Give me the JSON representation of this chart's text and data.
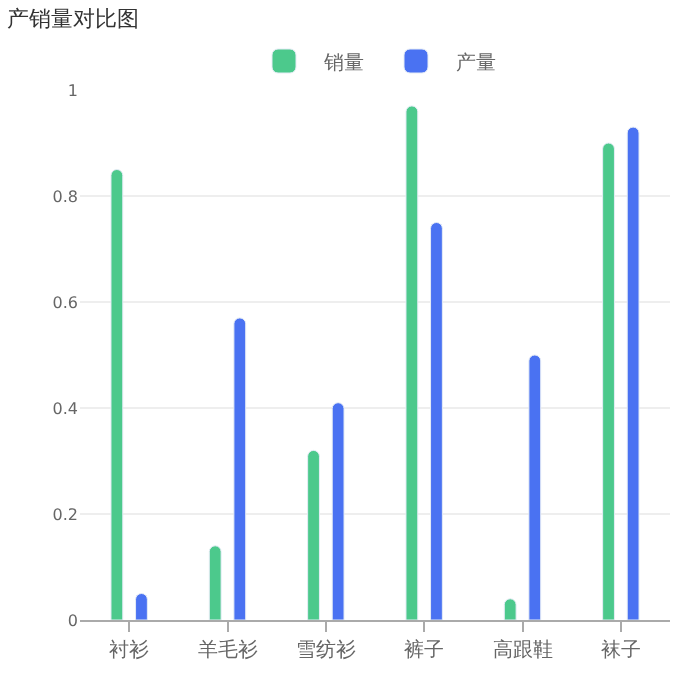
{
  "chart_data": {
    "type": "bar",
    "title": "产销量对比图",
    "categories": [
      "衬衫",
      "羊毛衫",
      "雪纺衫",
      "裤子",
      "高跟鞋",
      "袜子"
    ],
    "series": [
      {
        "name": "销量",
        "color": "#4cc98c",
        "values": [
          0.85,
          0.14,
          0.32,
          0.97,
          0.04,
          0.9
        ]
      },
      {
        "name": "产量",
        "color": "#4a72f2",
        "values": [
          0.05,
          0.57,
          0.41,
          0.75,
          0.5,
          0.93
        ]
      }
    ],
    "ylim": [
      0,
      1
    ],
    "yticks": [
      0,
      0.2,
      0.4,
      0.6,
      0.8,
      1
    ],
    "grid": "y",
    "legend": "top"
  }
}
